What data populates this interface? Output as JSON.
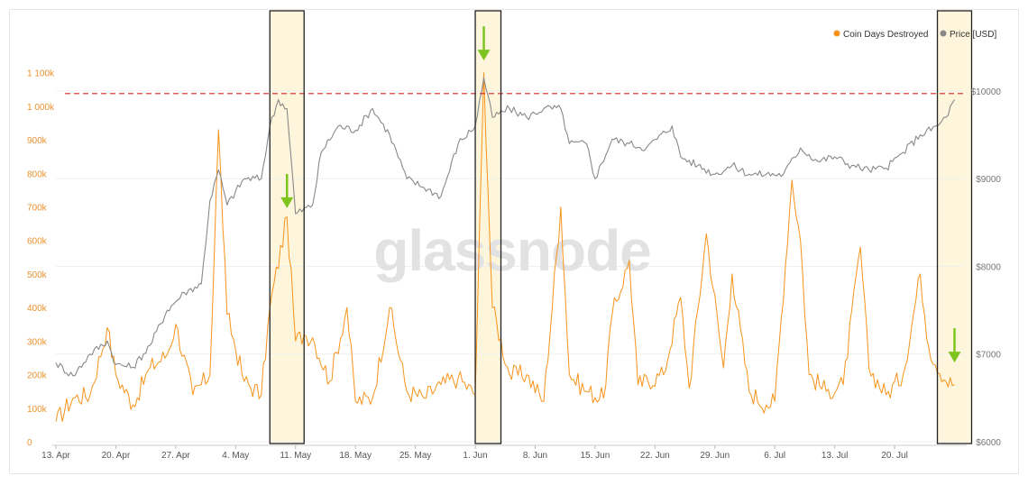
{
  "chart_data": {
    "type": "line",
    "watermark": "glassnode",
    "legend": {
      "position": "top-right"
    },
    "series": [
      {
        "name": "Coin Days Destroyed",
        "axis": "left",
        "color": "#f7931a",
        "points": [
          [
            "2020-04-13",
            60000
          ],
          [
            "2020-04-15",
            130000
          ],
          [
            "2020-04-17",
            140000
          ],
          [
            "2020-04-19",
            340000
          ],
          [
            "2020-04-20",
            200000
          ],
          [
            "2020-04-22",
            110000
          ],
          [
            "2020-04-24",
            220000
          ],
          [
            "2020-04-26",
            260000
          ],
          [
            "2020-04-27",
            350000
          ],
          [
            "2020-04-29",
            140000
          ],
          [
            "2020-05-01",
            200000
          ],
          [
            "2020-05-02",
            930000
          ],
          [
            "2020-05-03",
            380000
          ],
          [
            "2020-05-05",
            180000
          ],
          [
            "2020-05-07",
            140000
          ],
          [
            "2020-05-08",
            400000
          ],
          [
            "2020-05-10",
            670000
          ],
          [
            "2020-05-11",
            300000
          ],
          [
            "2020-05-12",
            320000
          ],
          [
            "2020-05-13",
            310000
          ],
          [
            "2020-05-15",
            180000
          ],
          [
            "2020-05-17",
            400000
          ],
          [
            "2020-05-18",
            120000
          ],
          [
            "2020-05-20",
            130000
          ],
          [
            "2020-05-22",
            400000
          ],
          [
            "2020-05-24",
            150000
          ],
          [
            "2020-05-26",
            130000
          ],
          [
            "2020-05-28",
            170000
          ],
          [
            "2020-05-30",
            190000
          ],
          [
            "2020-06-01",
            140000
          ],
          [
            "2020-06-02",
            1100000
          ],
          [
            "2020-06-03",
            400000
          ],
          [
            "2020-06-05",
            200000
          ],
          [
            "2020-06-07",
            200000
          ],
          [
            "2020-06-09",
            120000
          ],
          [
            "2020-06-11",
            700000
          ],
          [
            "2020-06-12",
            200000
          ],
          [
            "2020-06-14",
            150000
          ],
          [
            "2020-06-16",
            130000
          ],
          [
            "2020-06-17",
            380000
          ],
          [
            "2020-06-19",
            540000
          ],
          [
            "2020-06-20",
            170000
          ],
          [
            "2020-06-23",
            200000
          ],
          [
            "2020-06-25",
            430000
          ],
          [
            "2020-06-26",
            160000
          ],
          [
            "2020-06-28",
            620000
          ],
          [
            "2020-06-30",
            220000
          ],
          [
            "2020-07-01",
            500000
          ],
          [
            "2020-07-03",
            150000
          ],
          [
            "2020-07-05",
            110000
          ],
          [
            "2020-07-06",
            120000
          ],
          [
            "2020-07-08",
            780000
          ],
          [
            "2020-07-09",
            600000
          ],
          [
            "2020-07-10",
            200000
          ],
          [
            "2020-07-12",
            150000
          ],
          [
            "2020-07-14",
            170000
          ],
          [
            "2020-07-16",
            580000
          ],
          [
            "2020-07-17",
            220000
          ],
          [
            "2020-07-19",
            140000
          ],
          [
            "2020-07-21",
            200000
          ],
          [
            "2020-07-23",
            500000
          ],
          [
            "2020-07-24",
            280000
          ],
          [
            "2020-07-26",
            180000
          ],
          [
            "2020-07-27",
            170000
          ]
        ]
      },
      {
        "name": "Price [USD]",
        "axis": "right",
        "color": "#888888",
        "points": [
          [
            "2020-04-13",
            6900
          ],
          [
            "2020-04-15",
            6750
          ],
          [
            "2020-04-17",
            7000
          ],
          [
            "2020-04-19",
            7150
          ],
          [
            "2020-04-20",
            6880
          ],
          [
            "2020-04-22",
            6850
          ],
          [
            "2020-04-24",
            7100
          ],
          [
            "2020-04-26",
            7500
          ],
          [
            "2020-04-28",
            7700
          ],
          [
            "2020-04-30",
            7800
          ],
          [
            "2020-05-01",
            8750
          ],
          [
            "2020-05-02",
            9100
          ],
          [
            "2020-05-03",
            8700
          ],
          [
            "2020-05-05",
            9000
          ],
          [
            "2020-05-07",
            9000
          ],
          [
            "2020-05-08",
            9600
          ],
          [
            "2020-05-09",
            9900
          ],
          [
            "2020-05-10",
            9800
          ],
          [
            "2020-05-11",
            8600
          ],
          [
            "2020-05-13",
            8700
          ],
          [
            "2020-05-14",
            9300
          ],
          [
            "2020-05-16",
            9600
          ],
          [
            "2020-05-18",
            9550
          ],
          [
            "2020-05-20",
            9800
          ],
          [
            "2020-05-22",
            9500
          ],
          [
            "2020-05-24",
            9000
          ],
          [
            "2020-05-26",
            8900
          ],
          [
            "2020-05-28",
            8800
          ],
          [
            "2020-05-30",
            9400
          ],
          [
            "2020-06-01",
            9600
          ],
          [
            "2020-06-02",
            10150
          ],
          [
            "2020-06-03",
            9700
          ],
          [
            "2020-06-05",
            9800
          ],
          [
            "2020-06-07",
            9700
          ],
          [
            "2020-06-09",
            9800
          ],
          [
            "2020-06-11",
            9800
          ],
          [
            "2020-06-12",
            9400
          ],
          [
            "2020-06-14",
            9400
          ],
          [
            "2020-06-15",
            9000
          ],
          [
            "2020-06-17",
            9450
          ],
          [
            "2020-06-19",
            9400
          ],
          [
            "2020-06-21",
            9350
          ],
          [
            "2020-06-24",
            9600
          ],
          [
            "2020-06-25",
            9250
          ],
          [
            "2020-06-27",
            9150
          ],
          [
            "2020-06-29",
            9050
          ],
          [
            "2020-07-01",
            9150
          ],
          [
            "2020-07-03",
            9050
          ],
          [
            "2020-07-05",
            9050
          ],
          [
            "2020-07-07",
            9050
          ],
          [
            "2020-07-09",
            9350
          ],
          [
            "2020-07-11",
            9200
          ],
          [
            "2020-07-13",
            9250
          ],
          [
            "2020-07-15",
            9150
          ],
          [
            "2020-07-17",
            9100
          ],
          [
            "2020-07-19",
            9120
          ],
          [
            "2020-07-21",
            9300
          ],
          [
            "2020-07-23",
            9500
          ],
          [
            "2020-07-25",
            9600
          ],
          [
            "2020-07-26",
            9700
          ],
          [
            "2020-07-27",
            9900
          ]
        ]
      }
    ],
    "x_axis": {
      "ticks": [
        "2020-04-13",
        "2020-04-20",
        "2020-04-27",
        "2020-05-04",
        "2020-05-11",
        "2020-05-18",
        "2020-05-25",
        "2020-06-01",
        "2020-06-08",
        "2020-06-15",
        "2020-06-22",
        "2020-06-29",
        "2020-07-06",
        "2020-07-13",
        "2020-07-20"
      ],
      "tick_labels": [
        "13. Apr",
        "20. Apr",
        "27. Apr",
        "4. May",
        "11. May",
        "18. May",
        "25. May",
        "1. Jun",
        "8. Jun",
        "15. Jun",
        "22. Jun",
        "29. Jun",
        "6. Jul",
        "13. Jul",
        "20. Jul"
      ],
      "range": [
        "2020-04-13",
        "2020-07-28"
      ]
    },
    "y_left": {
      "range": [
        0,
        1150000
      ],
      "ticks": [
        0,
        100000,
        200000,
        300000,
        400000,
        500000,
        600000,
        700000,
        800000,
        900000,
        1000000,
        1100000
      ],
      "tick_labels": [
        "0",
        "100k",
        "200k",
        "300k",
        "400k",
        "500k",
        "600k",
        "700k",
        "800k",
        "900k",
        "1 000k",
        "1 100k"
      ],
      "color": "#e8922e"
    },
    "y_right": {
      "range": [
        6000,
        10400
      ],
      "ticks": [
        6000,
        7000,
        8000,
        9000,
        10000
      ],
      "tick_labels": [
        "$6000",
        "$7000",
        "$8000",
        "$9000",
        "$10000"
      ],
      "color": "#777777"
    },
    "reference_line": {
      "axis": "right",
      "value": 9970,
      "color": "#d62728",
      "style": "dashed"
    },
    "highlight_ranges": [
      {
        "start": "2020-05-08",
        "end": "2020-05-12"
      },
      {
        "start": "2020-06-01",
        "end": "2020-06-04"
      },
      {
        "start": "2020-07-25",
        "end": "2020-07-29"
      }
    ],
    "arrows": [
      {
        "date": "2020-05-10",
        "axis": "left",
        "value": 680000
      },
      {
        "date": "2020-06-02",
        "axis": "left",
        "value": 1120000
      },
      {
        "date": "2020-07-27",
        "axis": "left",
        "value": 220000
      }
    ],
    "arrow_color": "#7ec41f",
    "highlight_color": "#fdf6dc"
  }
}
